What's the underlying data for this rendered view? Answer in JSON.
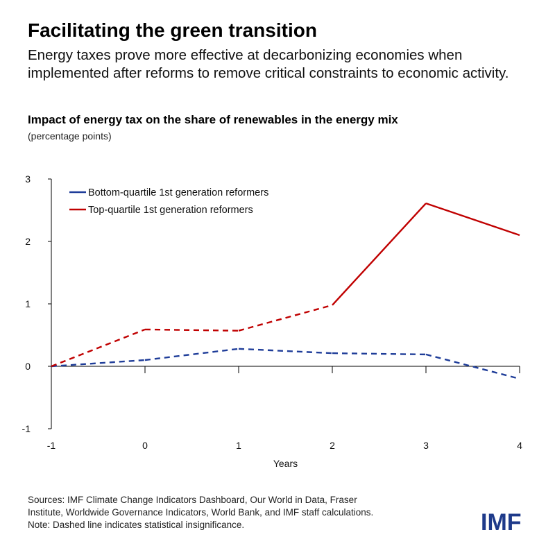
{
  "title": "Facilitating the green transition",
  "subtitle": "Energy taxes prove more effective at decarbonizing economies when implemented after reforms to remove critical constraints to economic activity.",
  "chart_data": {
    "type": "line",
    "title": "Impact of energy tax on the share of renewables in the energy mix",
    "unit": "(percentage points)",
    "xlabel": "Years",
    "ylabel": "",
    "x": [
      -1,
      0,
      1,
      2,
      3,
      4
    ],
    "xticks": [
      "-1",
      "0",
      "1",
      "2",
      "3",
      "4"
    ],
    "yticks": [
      "-1",
      "0",
      "1",
      "2",
      "3"
    ],
    "ylim": [
      -1,
      3
    ],
    "xlim": [
      -1,
      4
    ],
    "grid": false,
    "legend_position": "top-left",
    "series": [
      {
        "name": "Bottom-quartile 1st generation reformers",
        "color": "#1f3d99",
        "values": [
          0,
          0.1,
          0.28,
          0.21,
          0.19,
          -0.2
        ],
        "dashed_segments": [
          true,
          true,
          true,
          true,
          true
        ]
      },
      {
        "name": "Top-quartile 1st generation reformers",
        "color": "#c00000",
        "values": [
          0,
          0.59,
          0.57,
          0.98,
          2.61,
          2.1
        ],
        "dashed_segments": [
          true,
          true,
          true,
          false,
          false
        ]
      }
    ]
  },
  "footer": {
    "line1": "Sources: IMF Climate Change Indicators Dashboard, Our World in Data, Fraser",
    "line2": "Institute, Worldwide Governance Indicators, World Bank, and IMF staff calculations.",
    "line3": "Note: Dashed line indicates statistical insignificance."
  },
  "logo": "IMF"
}
